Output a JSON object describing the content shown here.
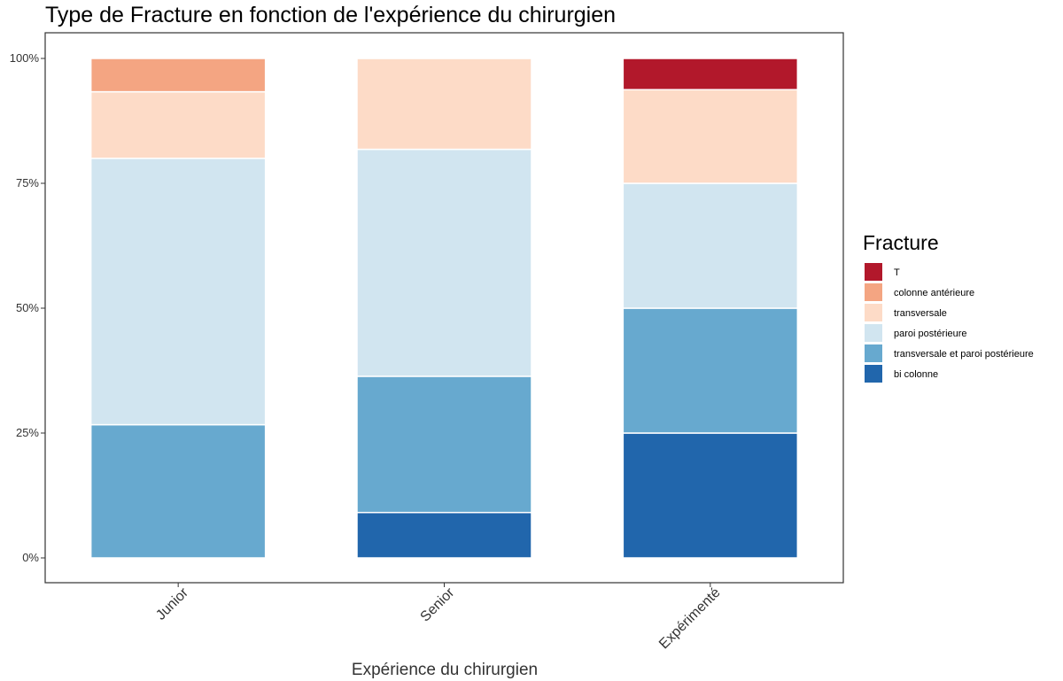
{
  "chart_data": {
    "type": "bar",
    "stacked": true,
    "normalized": true,
    "title": "Type de Fracture en fonction de l'expérience du chirurgien",
    "xlabel": "Expérience du chirurgien",
    "ylabel": "",
    "ylim": [
      0,
      1
    ],
    "y_ticks": [
      {
        "value": 0,
        "label": "0%"
      },
      {
        "value": 0.25,
        "label": "25%"
      },
      {
        "value": 0.5,
        "label": "50%"
      },
      {
        "value": 0.75,
        "label": "75%"
      },
      {
        "value": 1,
        "label": "100%"
      }
    ],
    "grid": false,
    "categories": [
      "Junior",
      "Senior",
      "Expérimenté"
    ],
    "legend": {
      "title": "Fracture",
      "position": "right"
    },
    "series": [
      {
        "name": "T",
        "color": "#B2182B",
        "values": [
          0,
          0,
          0.0625
        ]
      },
      {
        "name": "colonne antérieure",
        "color": "#F4A582",
        "values": [
          0.0667,
          0,
          0
        ]
      },
      {
        "name": "transversale",
        "color": "#FDDBC7",
        "values": [
          0.1333,
          0.1818,
          0.1875
        ]
      },
      {
        "name": "paroi postérieure",
        "color": "#D1E5F0",
        "values": [
          0.5333,
          0.4545,
          0.25
        ]
      },
      {
        "name": "transversale et paroi postérieure",
        "color": "#67A9CF",
        "values": [
          0.2667,
          0.2727,
          0.25
        ]
      },
      {
        "name": "bi colonne",
        "color": "#2166AC",
        "values": [
          0,
          0.0909,
          0.25
        ]
      }
    ]
  }
}
